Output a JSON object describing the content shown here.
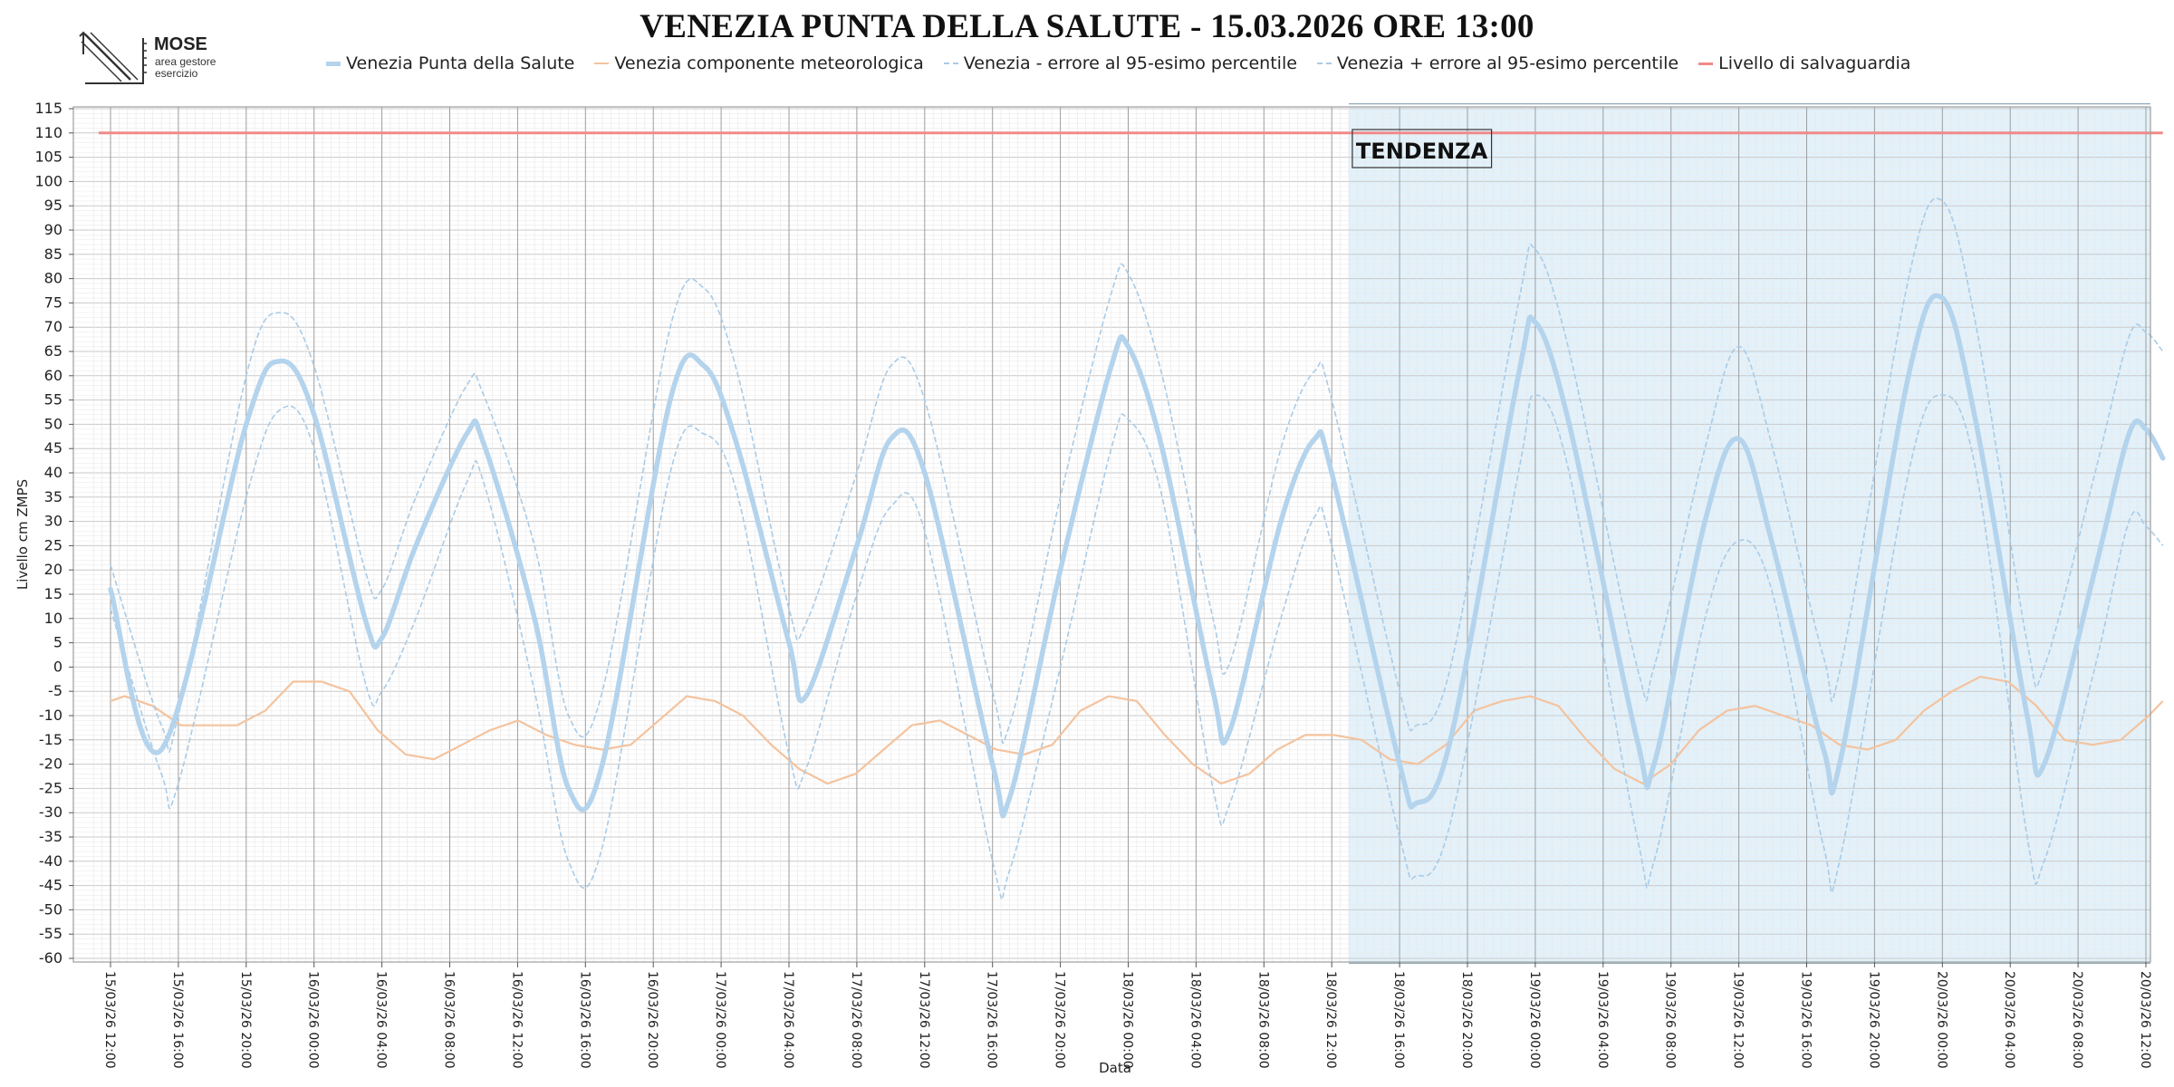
{
  "brand": {
    "name": "MOSE",
    "subtitle_line1": "area gestore",
    "subtitle_line2": "esercizio"
  },
  "chart_data": {
    "type": "line",
    "title": "VENEZIA PUNTA DELLA SALUTE - 15.03.2026 ORE 13:00",
    "xlabel": "Data",
    "ylabel": "Livello cm ZMPS",
    "ylim": [
      -60,
      115
    ],
    "ytick_step": 5,
    "grid": true,
    "legend_position": "top",
    "x_tick_labels": [
      "15/03/26 12:00",
      "15/03/26 16:00",
      "15/03/26 20:00",
      "16/03/26 00:00",
      "16/03/26 04:00",
      "16/03/26 08:00",
      "16/03/26 12:00",
      "16/03/26 16:00",
      "16/03/26 20:00",
      "17/03/26 00:00",
      "17/03/26 04:00",
      "17/03/26 08:00",
      "17/03/26 12:00",
      "17/03/26 16:00",
      "17/03/26 20:00",
      "18/03/26 00:00",
      "18/03/26 04:00",
      "18/03/26 08:00",
      "18/03/26 12:00",
      "18/03/26 16:00",
      "18/03/26 20:00",
      "19/03/26 00:00",
      "19/03/26 04:00",
      "19/03/26 08:00",
      "19/03/26 12:00",
      "19/03/26 16:00",
      "19/03/26 20:00",
      "20/03/26 00:00",
      "20/03/26 04:00",
      "20/03/26 08:00",
      "20/03/26 12:00"
    ],
    "x_hours_range": [
      -1,
      121
    ],
    "tendenza": {
      "label": "TENDENZA",
      "start_hour": 73
    },
    "series": [
      {
        "name": "Venezia Punta della Salute",
        "color": "#b4d3ec",
        "points": [
          [
            0,
            16
          ],
          [
            3,
            -17
          ],
          [
            8,
            50
          ],
          [
            10,
            63
          ],
          [
            12,
            52
          ],
          [
            15,
            10
          ],
          [
            16,
            6
          ],
          [
            18,
            25
          ],
          [
            21,
            48
          ],
          [
            22,
            46
          ],
          [
            25,
            10
          ],
          [
            27,
            -25
          ],
          [
            29,
            -20
          ],
          [
            33,
            55
          ],
          [
            35,
            62
          ],
          [
            37,
            45
          ],
          [
            40,
            5
          ],
          [
            41,
            -6
          ],
          [
            44,
            25
          ],
          [
            46,
            47
          ],
          [
            48,
            40
          ],
          [
            52,
            -20
          ],
          [
            53,
            -27
          ],
          [
            56,
            20
          ],
          [
            59,
            62
          ],
          [
            60,
            66
          ],
          [
            62,
            45
          ],
          [
            65,
            -5
          ],
          [
            66,
            -13
          ],
          [
            69,
            30
          ],
          [
            71,
            47
          ],
          [
            72,
            40
          ],
          [
            76,
            -20
          ],
          [
            77,
            -28
          ],
          [
            79,
            -15
          ],
          [
            83,
            60
          ],
          [
            84,
            71
          ],
          [
            86,
            50
          ],
          [
            90,
            -15
          ],
          [
            91,
            -20
          ],
          [
            94,
            30
          ],
          [
            96,
            47
          ],
          [
            98,
            25
          ],
          [
            101,
            -17
          ],
          [
            102,
            -19
          ],
          [
            106,
            60
          ],
          [
            108,
            76
          ],
          [
            110,
            50
          ],
          [
            113,
            -10
          ],
          [
            114,
            -20
          ],
          [
            117,
            20
          ],
          [
            119,
            48
          ],
          [
            120,
            49
          ],
          [
            121,
            43
          ]
        ]
      },
      {
        "name": "Venezia componente meteorologica",
        "color": "#f4c39e",
        "points": [
          [
            0,
            -7
          ],
          [
            1,
            -6
          ],
          [
            3,
            -8
          ],
          [
            5,
            -12
          ],
          [
            7,
            -12
          ],
          [
            9,
            -12
          ],
          [
            11,
            -9
          ],
          [
            13,
            -3
          ],
          [
            15,
            -3
          ],
          [
            17,
            -5
          ],
          [
            19,
            -13
          ],
          [
            21,
            -18
          ],
          [
            23,
            -19
          ],
          [
            25,
            -16
          ],
          [
            27,
            -13
          ],
          [
            29,
            -11
          ],
          [
            31,
            -14
          ],
          [
            33,
            -16
          ],
          [
            35,
            -17
          ],
          [
            37,
            -16
          ],
          [
            39,
            -11
          ],
          [
            41,
            -6
          ],
          [
            43,
            -7
          ],
          [
            45,
            -10
          ],
          [
            47,
            -16
          ],
          [
            49,
            -21
          ],
          [
            51,
            -24
          ],
          [
            53,
            -22
          ],
          [
            55,
            -17
          ],
          [
            57,
            -12
          ],
          [
            59,
            -11
          ],
          [
            61,
            -14
          ],
          [
            63,
            -17
          ],
          [
            65,
            -18
          ],
          [
            67,
            -16
          ],
          [
            69,
            -9
          ],
          [
            71,
            -6
          ],
          [
            73,
            -7
          ],
          [
            75,
            -14
          ],
          [
            77,
            -20
          ],
          [
            79,
            -24
          ],
          [
            81,
            -22
          ],
          [
            83,
            -17
          ],
          [
            85,
            -14
          ],
          [
            87,
            -14
          ],
          [
            89,
            -15
          ],
          [
            91,
            -19
          ],
          [
            93,
            -20
          ],
          [
            95,
            -16
          ],
          [
            97,
            -9
          ],
          [
            99,
            -7
          ],
          [
            101,
            -6
          ],
          [
            103,
            -8
          ],
          [
            105,
            -15
          ],
          [
            107,
            -21
          ],
          [
            109,
            -24
          ],
          [
            111,
            -20
          ],
          [
            113,
            -13
          ],
          [
            115,
            -9
          ],
          [
            117,
            -8
          ],
          [
            119,
            -10
          ],
          [
            121,
            -12
          ],
          [
            123,
            -16
          ],
          [
            125,
            -17
          ],
          [
            127,
            -15
          ],
          [
            129,
            -9
          ],
          [
            131,
            -5
          ],
          [
            133,
            -2
          ],
          [
            135,
            -3
          ],
          [
            137,
            -8
          ],
          [
            139,
            -15
          ],
          [
            141,
            -16
          ],
          [
            143,
            -15
          ],
          [
            145,
            -10
          ],
          [
            146,
            -7
          ]
        ]
      },
      {
        "name": "Venezia - errore al 95-esimo percentile",
        "color": "#aacbe6",
        "dashed": true,
        "points": [
          [
            0,
            12
          ],
          [
            3,
            -22
          ],
          [
            4,
            -24
          ],
          [
            8,
            35
          ],
          [
            10,
            53
          ],
          [
            12,
            45
          ],
          [
            15,
            -3
          ],
          [
            16,
            -5
          ],
          [
            18,
            10
          ],
          [
            21,
            38
          ],
          [
            22,
            38
          ],
          [
            25,
            -5
          ],
          [
            27,
            -40
          ],
          [
            29,
            -37
          ],
          [
            33,
            40
          ],
          [
            35,
            48
          ],
          [
            37,
            35
          ],
          [
            40,
            -18
          ],
          [
            41,
            -21
          ],
          [
            44,
            15
          ],
          [
            46,
            33
          ],
          [
            48,
            28
          ],
          [
            52,
            -40
          ],
          [
            53,
            -42
          ],
          [
            56,
            0
          ],
          [
            59,
            45
          ],
          [
            60,
            51
          ],
          [
            62,
            35
          ],
          [
            65,
            -25
          ],
          [
            66,
            -28
          ],
          [
            69,
            10
          ],
          [
            71,
            31
          ],
          [
            72,
            25
          ],
          [
            76,
            -35
          ],
          [
            77,
            -43
          ],
          [
            79,
            -32
          ],
          [
            83,
            40
          ],
          [
            84,
            56
          ],
          [
            86,
            40
          ],
          [
            90,
            -35
          ],
          [
            91,
            -40
          ],
          [
            94,
            10
          ],
          [
            96,
            26
          ],
          [
            98,
            15
          ],
          [
            101,
            -37
          ],
          [
            102,
            -39
          ],
          [
            106,
            40
          ],
          [
            108,
            56
          ],
          [
            110,
            40
          ],
          [
            113,
            -35
          ],
          [
            114,
            -40
          ],
          [
            117,
            0
          ],
          [
            119,
            30
          ],
          [
            120,
            29
          ],
          [
            121,
            25
          ]
        ]
      },
      {
        "name": "Venezia + errore al 95-esimo percentile",
        "color": "#aacbe6",
        "dashed": true,
        "points": [
          [
            0,
            21
          ],
          [
            3,
            -12
          ],
          [
            4,
            -10
          ],
          [
            8,
            60
          ],
          [
            10,
            73
          ],
          [
            12,
            62
          ],
          [
            15,
            20
          ],
          [
            16,
            16
          ],
          [
            18,
            35
          ],
          [
            21,
            58
          ],
          [
            22,
            56
          ],
          [
            25,
            25
          ],
          [
            27,
            -10
          ],
          [
            29,
            -5
          ],
          [
            33,
            70
          ],
          [
            35,
            78
          ],
          [
            37,
            60
          ],
          [
            40,
            12
          ],
          [
            41,
            9
          ],
          [
            44,
            40
          ],
          [
            46,
            62
          ],
          [
            48,
            55
          ],
          [
            52,
            -5
          ],
          [
            53,
            -12
          ],
          [
            56,
            35
          ],
          [
            59,
            77
          ],
          [
            60,
            81
          ],
          [
            62,
            60
          ],
          [
            65,
            10
          ],
          [
            66,
            1
          ],
          [
            69,
            45
          ],
          [
            71,
            61
          ],
          [
            72,
            55
          ],
          [
            76,
            -5
          ],
          [
            77,
            -12
          ],
          [
            79,
            0
          ],
          [
            83,
            75
          ],
          [
            84,
            86
          ],
          [
            86,
            65
          ],
          [
            90,
            0
          ],
          [
            91,
            0
          ],
          [
            94,
            45
          ],
          [
            96,
            66
          ],
          [
            98,
            45
          ],
          [
            101,
            2
          ],
          [
            102,
            0
          ],
          [
            106,
            80
          ],
          [
            108,
            96
          ],
          [
            110,
            70
          ],
          [
            113,
            5
          ],
          [
            114,
            0
          ],
          [
            117,
            40
          ],
          [
            119,
            68
          ],
          [
            120,
            69
          ],
          [
            121,
            65
          ]
        ]
      },
      {
        "name": "Livello di salvaguardia",
        "color": "#f08a8a",
        "constant": 110
      }
    ]
  }
}
